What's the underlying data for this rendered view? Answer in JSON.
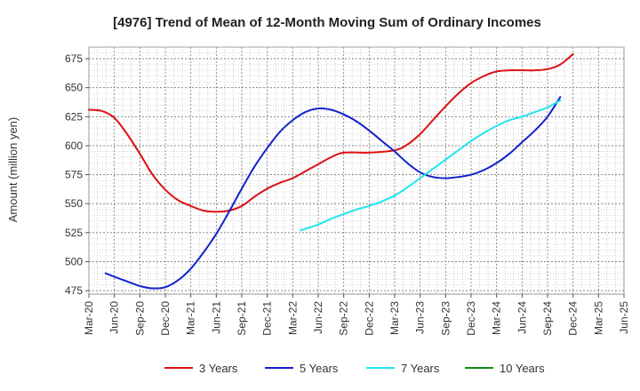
{
  "chart_data": {
    "type": "line",
    "title": "[4976]  Trend of Mean of 12-Month Moving Sum of Ordinary Incomes",
    "xlabel": "",
    "ylabel": "Amount (million yen)",
    "ylim": [
      472,
      685
    ],
    "yticks": [
      475,
      500,
      525,
      550,
      575,
      600,
      625,
      650,
      675
    ],
    "x_categories": [
      "Mar-20",
      "Jun-20",
      "Sep-20",
      "Dec-20",
      "Mar-21",
      "Jun-21",
      "Sep-21",
      "Dec-21",
      "Mar-22",
      "Jun-22",
      "Sep-22",
      "Dec-22",
      "Mar-23",
      "Jun-23",
      "Sep-23",
      "Dec-23",
      "Mar-24",
      "Jun-24",
      "Sep-24",
      "Dec-24",
      "Mar-25",
      "Jun-25"
    ],
    "grid": true,
    "legend_position": "bottom",
    "series": [
      {
        "name": "3 Years",
        "color": "#dd1111",
        "points": [
          [
            0,
            631
          ],
          [
            0.5,
            630
          ],
          [
            1,
            624
          ],
          [
            1.5,
            610
          ],
          [
            2,
            593
          ],
          [
            2.5,
            575
          ],
          [
            3,
            562
          ],
          [
            3.5,
            553
          ],
          [
            4,
            548
          ],
          [
            4.5,
            544
          ],
          [
            5,
            543
          ],
          [
            5.5,
            544
          ],
          [
            6,
            548
          ],
          [
            6.5,
            556
          ],
          [
            7,
            563
          ],
          [
            7.5,
            568
          ],
          [
            8,
            572
          ],
          [
            8.5,
            578
          ],
          [
            9,
            584
          ],
          [
            9.5,
            590
          ],
          [
            10,
            594
          ],
          [
            11,
            594
          ],
          [
            12,
            596
          ],
          [
            12.5,
            601
          ],
          [
            13,
            610
          ],
          [
            13.5,
            622
          ],
          [
            14,
            634
          ],
          [
            14.5,
            645
          ],
          [
            15,
            654
          ],
          [
            15.5,
            660
          ],
          [
            16,
            664
          ],
          [
            16.5,
            665
          ],
          [
            17,
            665
          ],
          [
            17.5,
            665
          ],
          [
            18,
            666
          ],
          [
            18.5,
            670
          ],
          [
            19,
            679
          ]
        ]
      },
      {
        "name": "5 Years",
        "color": "#1122cc",
        "points": [
          [
            0.65,
            490
          ],
          [
            1,
            487
          ],
          [
            1.5,
            483
          ],
          [
            2,
            479
          ],
          [
            2.5,
            477
          ],
          [
            3,
            478
          ],
          [
            3.5,
            484
          ],
          [
            4,
            494
          ],
          [
            4.5,
            508
          ],
          [
            5,
            524
          ],
          [
            5.5,
            543
          ],
          [
            6,
            563
          ],
          [
            6.5,
            582
          ],
          [
            7,
            598
          ],
          [
            7.5,
            612
          ],
          [
            8,
            622
          ],
          [
            8.5,
            629
          ],
          [
            9,
            632
          ],
          [
            9.5,
            631
          ],
          [
            10,
            627
          ],
          [
            10.5,
            621
          ],
          [
            11,
            613
          ],
          [
            11.5,
            604
          ],
          [
            12,
            595
          ],
          [
            12.5,
            585
          ],
          [
            13,
            577
          ],
          [
            13.5,
            573
          ],
          [
            14,
            572
          ],
          [
            14.5,
            573
          ],
          [
            15,
            575
          ],
          [
            15.5,
            579
          ],
          [
            16,
            585
          ],
          [
            16.5,
            593
          ],
          [
            17,
            603
          ],
          [
            17.5,
            613
          ],
          [
            18,
            625
          ],
          [
            18.5,
            642
          ]
        ]
      },
      {
        "name": "7 Years",
        "color": "#22e5ee",
        "points": [
          [
            8.3,
            527
          ],
          [
            9,
            532
          ],
          [
            9.5,
            537
          ],
          [
            10,
            541
          ],
          [
            10.5,
            545
          ],
          [
            11,
            548
          ],
          [
            11.5,
            552
          ],
          [
            12,
            557
          ],
          [
            12.5,
            564
          ],
          [
            13,
            572
          ],
          [
            13.5,
            580
          ],
          [
            14,
            588
          ],
          [
            14.5,
            596
          ],
          [
            15,
            604
          ],
          [
            15.5,
            611
          ],
          [
            16,
            617
          ],
          [
            16.5,
            622
          ],
          [
            17,
            625
          ],
          [
            17.5,
            629
          ],
          [
            18,
            633
          ],
          [
            18.5,
            639
          ]
        ]
      },
      {
        "name": "10 Years",
        "color": "#118811",
        "points": []
      }
    ]
  }
}
